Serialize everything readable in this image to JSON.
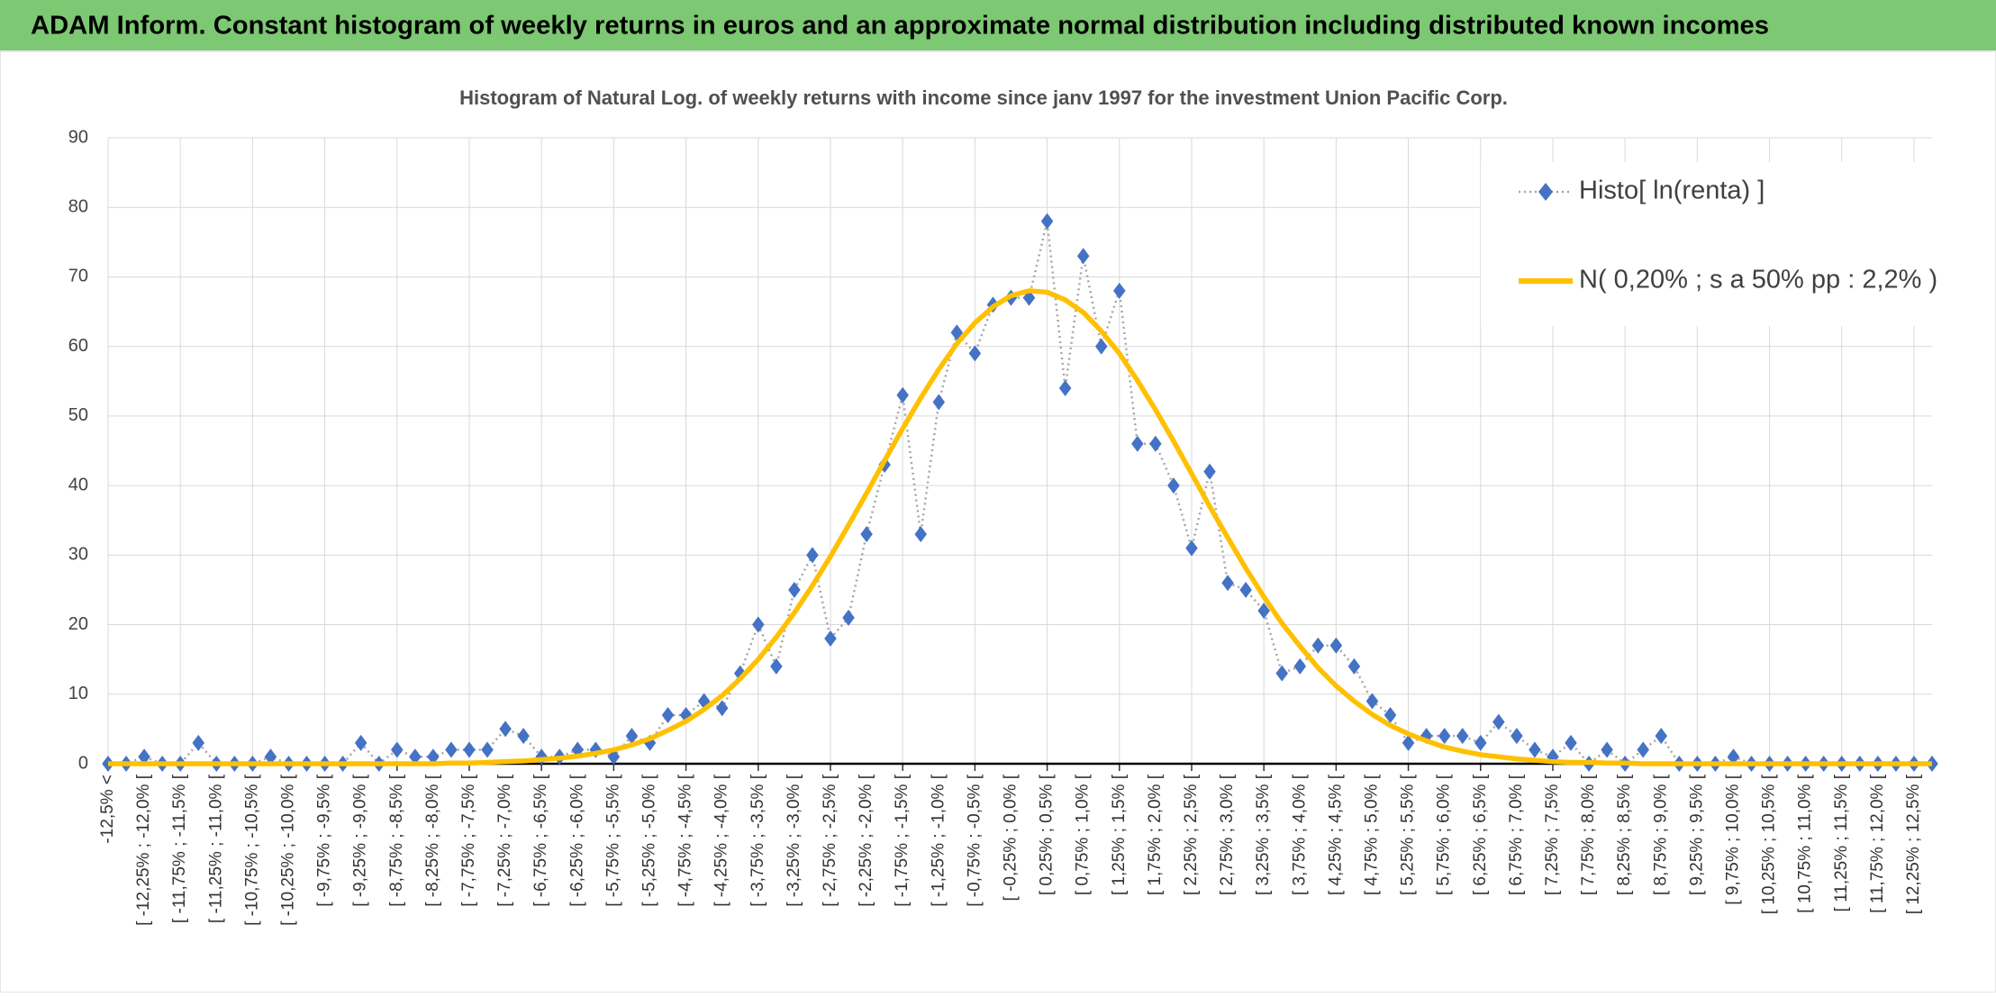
{
  "chart_data": {
    "type": "line",
    "title": "ADAM Inform. Constant histogram of weekly returns in euros and an approximate normal distribution including distributed known incomes",
    "subtitle": "Histogram of Natural Log. of weekly returns with income since janv 1997 for the investment Union Pacific Corp.",
    "categories": [
      "-12,5% <",
      null,
      "[ -12,25% ; -12,0% [",
      null,
      "[ -11,75% ; -11,5% [",
      null,
      "[ -11,25% ; -11,0% [",
      null,
      "[ -10,75% ; -10,5% [",
      null,
      "[ -10,25% ; -10,0% [",
      null,
      "[ -9,75% ; -9,5% [",
      null,
      "[ -9,25% ; -9,0% [",
      null,
      "[ -8,75% ; -8,5% [",
      null,
      "[ -8,25% ; -8,0% [",
      null,
      "[ -7,75% ; -7,5% [",
      null,
      "[ -7,25% ; -7,0% [",
      null,
      "[ -6,75% ; -6,5% [",
      null,
      "[ -6,25% ; -6,0% [",
      null,
      "[ -5,75% ; -5,5% [",
      null,
      "[ -5,25% ; -5,0% [",
      null,
      "[ -4,75% ; -4,5% [",
      null,
      "[ -4,25% ; -4,0% [",
      null,
      "[ -3,75% ; -3,5% [",
      null,
      "[ -3,25% ; -3,0% [",
      null,
      "[ -2,75% ; -2,5% [",
      null,
      "[ -2,25% ; -2,0% [",
      null,
      "[ -1,75% ; -1,5% [",
      null,
      "[ -1,25% ; -1,0% [",
      null,
      "[ -0,75% ; -0,5% [",
      null,
      "[ -0,25% ; 0,0% [",
      null,
      "[ 0,25% ; 0,5% [",
      null,
      "[ 0,75% ; 1,0% [",
      null,
      "[ 1,25% ; 1,5% [",
      null,
      "[ 1,75% ; 2,0% [",
      null,
      "[ 2,25% ; 2,5% [",
      null,
      "[ 2,75% ; 3,0% [",
      null,
      "[ 3,25% ; 3,5% [",
      null,
      "[ 3,75% ; 4,0% [",
      null,
      "[ 4,25% ; 4,5% [",
      null,
      "[ 4,75% ; 5,0% [",
      null,
      "[ 5,25% ; 5,5% [",
      null,
      "[ 5,75% ; 6,0% [",
      null,
      "[ 6,25% ; 6,5% [",
      null,
      "[ 6,75% ; 7,0% [",
      null,
      "[ 7,25% ; 7,5% [",
      null,
      "[ 7,75% ; 8,0% [",
      null,
      "[ 8,25% ; 8,5% [",
      null,
      "[ 8,75% ; 9,0% [",
      null,
      "[ 9,25% ; 9,5% [",
      null,
      "[ 9,75% ; 10,0% [",
      null,
      "[ 10,25% ; 10,5% [",
      null,
      "[ 10,75% ; 11,0% [",
      null,
      "[ 11,25% ; 11,5% [",
      null,
      "[ 11,75% ; 12,0% [",
      null,
      "[ 12,25% ; 12,5% [",
      null
    ],
    "series": [
      {
        "name": "Histo[ ln(renta) ]",
        "color": "#4472c4",
        "values": [
          0,
          0,
          1,
          0,
          0,
          3,
          0,
          0,
          0,
          1,
          0,
          0,
          0,
          0,
          3,
          0,
          2,
          1,
          1,
          2,
          2,
          2,
          5,
          4,
          1,
          1,
          2,
          2,
          1,
          4,
          3,
          7,
          7,
          9,
          8,
          13,
          20,
          14,
          25,
          30,
          18,
          21,
          33,
          43,
          53,
          33,
          52,
          62,
          59,
          66,
          67,
          67,
          78,
          54,
          73,
          60,
          68,
          46,
          46,
          40,
          31,
          42,
          26,
          25,
          22,
          13,
          14,
          17,
          17,
          14,
          9,
          7,
          3,
          4,
          4,
          4,
          3,
          6,
          4,
          2,
          1,
          3,
          0,
          2,
          0,
          2,
          4,
          0,
          0,
          0,
          1,
          0,
          0,
          0,
          0,
          0,
          0,
          0,
          0,
          0,
          0,
          0
        ]
      },
      {
        "name": "N( 0,20% ; s a 50% pp : 2,2% )",
        "color": "#ffc000",
        "values": [
          0,
          0,
          0,
          0,
          0,
          0,
          0,
          0,
          0,
          0,
          0,
          0,
          0,
          0,
          0,
          0,
          0,
          0,
          0,
          0.1,
          0.1,
          0.2,
          0.3,
          0.4,
          0.6,
          0.8,
          1.1,
          1.5,
          2.0,
          2.7,
          3.6,
          4.8,
          6.1,
          7.8,
          9.8,
          12.2,
          15.0,
          18.2,
          21.7,
          25.6,
          29.8,
          34.3,
          38.9,
          43.6,
          48.2,
          52.6,
          56.7,
          60.4,
          63.4,
          65.7,
          67.3,
          68.0,
          67.8,
          66.7,
          64.9,
          62.2,
          59.0,
          55.1,
          50.9,
          46.4,
          41.7,
          37.0,
          32.5,
          28.1,
          24.0,
          20.2,
          16.9,
          13.8,
          11.2,
          9.0,
          7.1,
          5.5,
          4.3,
          3.3,
          2.4,
          1.8,
          1.3,
          1.0,
          0.7,
          0.5,
          0.3,
          0.2,
          0.2,
          0.1,
          0.1,
          0,
          0,
          0,
          0,
          0,
          0,
          0,
          0,
          0,
          0,
          0,
          0,
          0,
          0,
          0,
          0,
          0
        ]
      }
    ],
    "ylim": [
      0,
      90
    ],
    "yticks": [
      0,
      10,
      20,
      30,
      40,
      50,
      60,
      70,
      80,
      90
    ],
    "grid": true,
    "legend": "top-right"
  }
}
